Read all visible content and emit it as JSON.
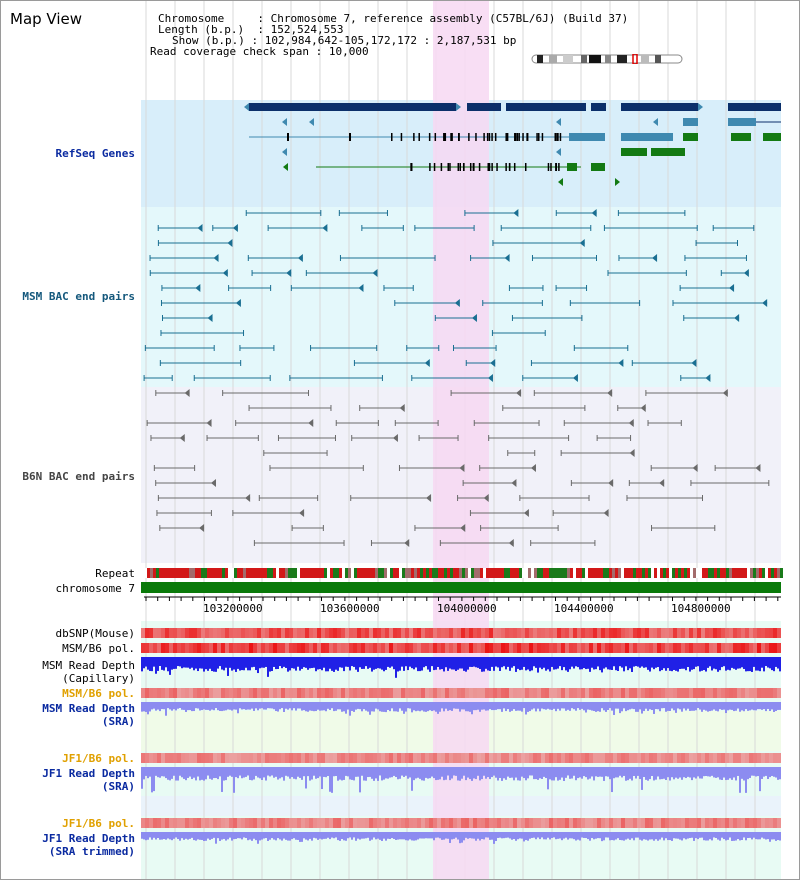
{
  "title": "Map View",
  "info": {
    "chromosome_label": "Chromosome",
    "chromosome_value": "Chromosome 7, reference assembly (C57BL/6J) (Build 37)",
    "length_label": "Length (b.p.)",
    "length_value": "152,524,553",
    "show_label": "Show (b.p.)",
    "show_value": "102,984,642-105,172,172 : 2,187,531 bp",
    "coverage_label": "Read coverage check span",
    "coverage_value": "10,000",
    "sep": " : "
  },
  "tracks": {
    "refseq": "RefSeq Genes",
    "msm_bac": "MSM BAC end pairs",
    "b6n_bac": "B6N BAC end pairs",
    "repeat": "Repeat",
    "chromosome": "chromosome 7",
    "dbsnp": "dbSNP(Mouse)",
    "msm_b6_pol_1": "MSM/B6 pol.",
    "msm_depth_cap_1": "MSM Read Depth",
    "msm_depth_cap_2": "(Capillary)",
    "msm_b6_pol_2": "MSM/B6 pol.",
    "msm_depth_sra_1": "MSM Read Depth",
    "msm_depth_sra_2": "(SRA)",
    "jf1_b6_pol_1": "JF1/B6 pol.",
    "jf1_depth_sra_1": "JF1 Read Depth",
    "jf1_depth_sra_2": "(SRA)",
    "jf1_b6_pol_2": "JF1/B6 pol.",
    "jf1_depth_trim_1": "JF1 Read Depth",
    "jf1_depth_trim_2": "(SRA trimmed)"
  },
  "axis": {
    "ticks": [
      "103200000",
      "103600000",
      "104000000",
      "104400000",
      "104800000"
    ]
  },
  "colors": {
    "highlight": "#f7d8f2",
    "refseq_bg": "#d8eefa",
    "msm_bg": "#e4f8fb",
    "b6n_bg": "#f1f1f9",
    "gene_blue": "#0b2f6a",
    "gene_teal": "#3f89b0",
    "gene_green": "#137a13",
    "bac_teal": "#1a6f92",
    "bac_gray": "#6a6a6a",
    "depth_blue": "#2020e6",
    "depth_light": "#8c8cf0"
  }
}
